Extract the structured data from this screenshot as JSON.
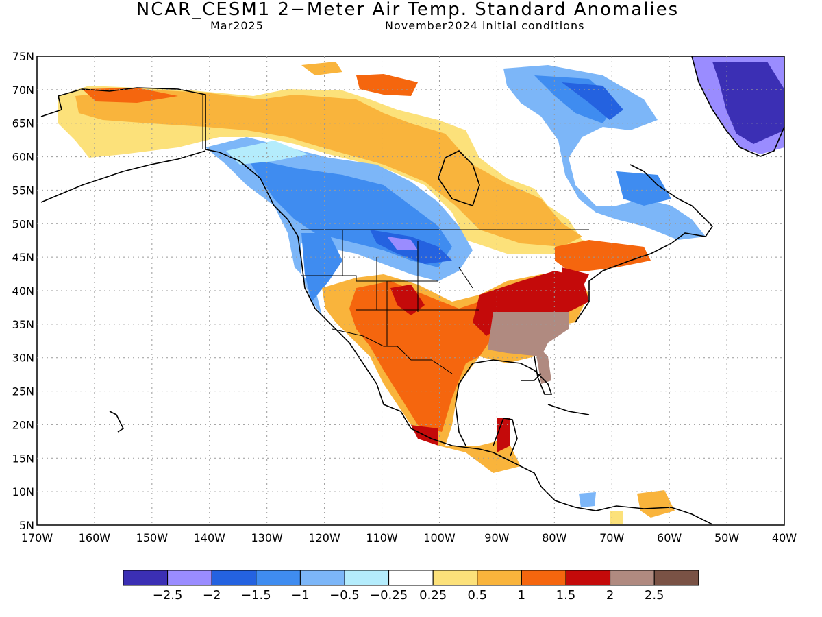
{
  "header": {
    "title": "NCAR_CESM1 2−Meter Air Temp. Standard Anomalies",
    "valid_month": "Mar2025",
    "init_conditions": "November2024 initial conditions"
  },
  "map": {
    "lat_labels": [
      "75N",
      "70N",
      "65N",
      "60N",
      "55N",
      "50N",
      "45N",
      "40N",
      "35N",
      "30N",
      "25N",
      "20N",
      "15N",
      "10N",
      "5N"
    ],
    "lon_labels": [
      "170W",
      "160W",
      "150W",
      "140W",
      "130W",
      "120W",
      "110W",
      "100W",
      "90W",
      "80W",
      "70W",
      "60W",
      "50W",
      "40W"
    ],
    "lat_range": [
      5,
      75
    ],
    "lon_range": [
      -170,
      -40
    ],
    "grid": "dotted"
  },
  "legend": {
    "colors": [
      "#3b2fb4",
      "#9a8cff",
      "#2462e0",
      "#3f8cf0",
      "#7cb6f8",
      "#b4ecfc",
      "#ffffff",
      "#fce17a",
      "#f9b43c",
      "#f5660e",
      "#c40a0a",
      "#b08a80",
      "#7a5245"
    ],
    "labels": [
      "−2.5",
      "−2",
      "−1.5",
      "−1",
      "−0.5",
      "−0.25",
      "0.25",
      "0.5",
      "1",
      "1.5",
      "2",
      "2.5"
    ]
  }
}
